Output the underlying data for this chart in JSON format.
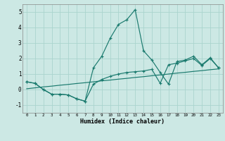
{
  "xlabel": "Humidex (Indice chaleur)",
  "x": [
    0,
    1,
    2,
    3,
    4,
    5,
    6,
    7,
    8,
    9,
    10,
    11,
    12,
    13,
    14,
    15,
    16,
    17,
    18,
    19,
    20,
    21,
    22,
    23
  ],
  "line1": [
    0.5,
    0.4,
    0.0,
    -0.3,
    -0.3,
    -0.35,
    -0.6,
    -0.75,
    1.4,
    2.15,
    3.3,
    4.2,
    4.5,
    5.15,
    2.5,
    1.9,
    1.1,
    0.35,
    1.8,
    1.9,
    2.15,
    1.6,
    2.05,
    1.4
  ],
  "line2": [
    0.5,
    0.4,
    0.0,
    -0.3,
    -0.3,
    -0.35,
    -0.6,
    -0.75,
    0.35,
    0.65,
    0.85,
    1.0,
    1.1,
    1.15,
    1.2,
    1.3,
    0.4,
    1.6,
    1.7,
    1.85,
    2.0,
    1.55,
    2.0,
    1.4
  ],
  "line3": [
    0.05,
    0.11,
    0.17,
    0.22,
    0.28,
    0.33,
    0.39,
    0.44,
    0.5,
    0.56,
    0.61,
    0.67,
    0.72,
    0.78,
    0.83,
    0.89,
    0.94,
    1.0,
    1.06,
    1.11,
    1.17,
    1.22,
    1.28,
    1.33
  ],
  "color": "#1a7a6e",
  "bg_color": "#cce8e4",
  "grid_color": "#aad4ce",
  "ylim": [
    -1.5,
    5.5
  ],
  "xlim": [
    -0.5,
    23.5
  ],
  "yticks": [
    -1,
    0,
    1,
    2,
    3,
    4,
    5
  ]
}
